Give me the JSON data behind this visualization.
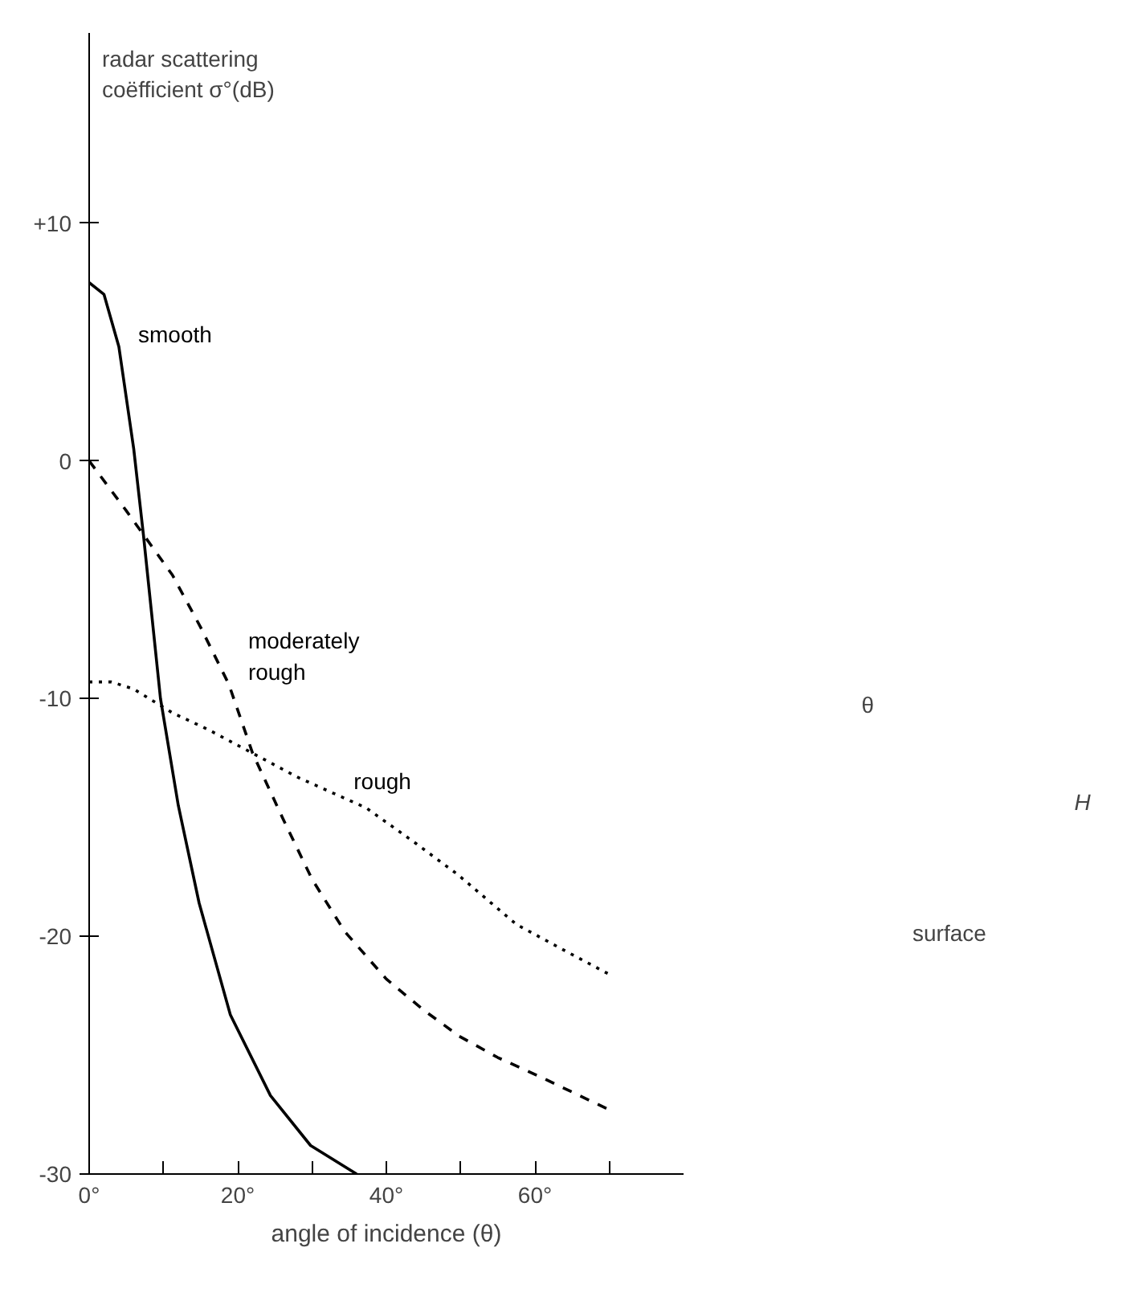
{
  "chart_data": {
    "type": "line",
    "xlabel": "angle of incidence (θ)",
    "ylabel": "radar scattering\ncoëfficient σ°(dB)",
    "xlim": [
      0,
      80
    ],
    "ylim": [
      -30,
      18
    ],
    "xticks": [
      {
        "value": 0,
        "label": "0°"
      },
      {
        "value": 10,
        "label": null
      },
      {
        "value": 20,
        "label": "20°"
      },
      {
        "value": 30,
        "label": null
      },
      {
        "value": 40,
        "label": "40°"
      },
      {
        "value": 50,
        "label": null
      },
      {
        "value": 60,
        "label": "60°"
      },
      {
        "value": 70,
        "label": null
      }
    ],
    "yticks": [
      {
        "value": 10,
        "label": "+10"
      },
      0,
      -10,
      -20,
      -30
    ],
    "series": [
      {
        "name": "smooth",
        "color": "#000000",
        "line_style": "solid",
        "x": [
          0,
          2,
          4,
          6,
          7.3,
          9.6,
          12,
          14.8,
          19,
          24.4,
          29.8,
          36
        ],
        "values": [
          7.5,
          7.0,
          4.8,
          0.5,
          -3.1,
          -10,
          -14.5,
          -18.6,
          -23.3,
          -26.7,
          -28.8,
          -30
        ]
      },
      {
        "name": "moderately\nrough",
        "color": "#000000",
        "line_style": "dashed",
        "x": [
          0,
          5,
          7.3,
          11.2,
          15,
          18.8,
          22,
          26,
          30,
          34.4,
          40,
          45,
          49.8,
          55,
          61.3,
          70
        ],
        "values": [
          0,
          -2.1,
          -3.1,
          -4.8,
          -7,
          -9.4,
          -12.3,
          -15,
          -17.6,
          -19.8,
          -21.8,
          -23.1,
          -24.2,
          -25.1,
          -26,
          -27.3
        ]
      },
      {
        "name": "rough",
        "color": "#000000",
        "line_style": "dotted",
        "x": [
          0,
          3,
          6,
          11.2,
          16,
          22,
          28,
          33,
          37.3,
          44,
          49.6,
          57.5,
          64,
          70
        ],
        "values": [
          -9.3,
          -9.3,
          -9.6,
          -10.6,
          -11.3,
          -12.3,
          -13.3,
          -14,
          -14.6,
          -16.1,
          -17.4,
          -19.5,
          -20.6,
          -21.6
        ]
      }
    ],
    "annotations": [
      "θ",
      "H",
      "surface"
    ]
  }
}
